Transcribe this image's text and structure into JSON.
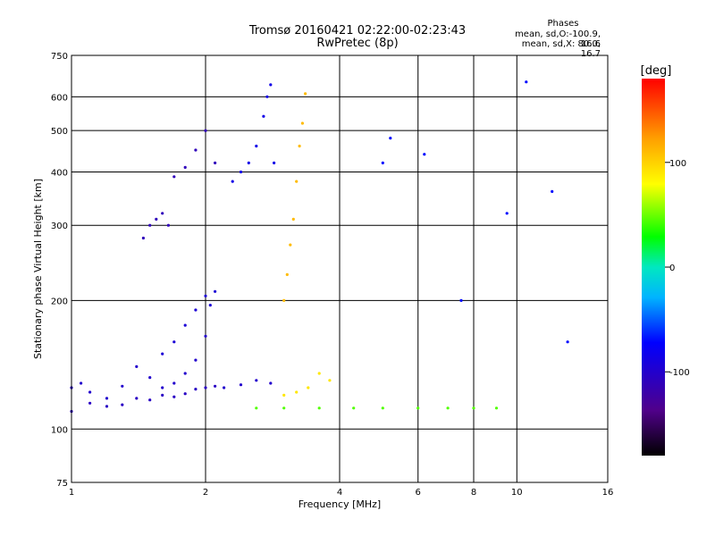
{
  "header": {
    "title": "Tromsø 20160421 02:22:00-02:23:43",
    "subtitle": "RwPretec (8p)"
  },
  "phases": {
    "heading": "Phases",
    "line_o": "mean, sd,O:-100.9, 16.6",
    "line_x": "mean, sd,X:  80.0, 16.7"
  },
  "chart_data": {
    "type": "scatter",
    "xlabel": "Frequency [MHz]",
    "ylabel": "Stationary phase Virtual Height [km]",
    "xscale": "log",
    "yscale": "log",
    "xlim": [
      1,
      16
    ],
    "ylim": [
      75,
      750
    ],
    "xticks": [
      1,
      2,
      4,
      6,
      8,
      10,
      16
    ],
    "yticks": [
      75,
      100,
      200,
      300,
      400,
      500,
      600,
      750
    ],
    "grid": true,
    "colorbar": {
      "label": "[deg]",
      "range": [
        -180,
        180
      ],
      "ticks": [
        100,
        0,
        -100
      ]
    },
    "series": [
      {
        "color_deg": -100,
        "x": [
          1.0,
          1.05,
          1.1,
          1.2,
          1.3,
          1.4,
          1.5,
          1.6,
          1.7,
          1.8,
          1.9,
          2.0,
          2.2,
          2.4,
          2.6,
          2.8
        ],
        "y": [
          125,
          128,
          122,
          118,
          126,
          140,
          132,
          125,
          128,
          135,
          145,
          165,
          125,
          127,
          130,
          128
        ]
      },
      {
        "color_deg": -105,
        "x": [
          1.0,
          1.1,
          1.2,
          1.3,
          1.4,
          1.5,
          1.6,
          1.7,
          1.8,
          1.9,
          2.0,
          2.1
        ],
        "y": [
          110,
          115,
          113,
          114,
          118,
          117,
          120,
          119,
          121,
          124,
          125,
          126
        ]
      },
      {
        "color_deg": -95,
        "x": [
          1.6,
          1.7,
          1.8,
          1.9,
          2.0,
          2.05,
          2.1
        ],
        "y": [
          150,
          160,
          175,
          190,
          205,
          195,
          210
        ]
      },
      {
        "color_deg": -110,
        "x": [
          1.45,
          1.5,
          1.55,
          1.6,
          1.65,
          1.7,
          1.8,
          1.9,
          2.0,
          2.1
        ],
        "y": [
          280,
          300,
          310,
          320,
          300,
          390,
          410,
          450,
          500,
          420
        ]
      },
      {
        "color_deg": -85,
        "x": [
          2.3,
          2.4,
          2.5,
          2.6,
          2.7,
          2.75,
          2.8,
          2.85
        ],
        "y": [
          380,
          400,
          420,
          460,
          540,
          600,
          640,
          420
        ]
      },
      {
        "color_deg": 110,
        "x": [
          3.0,
          3.05,
          3.1,
          3.15,
          3.2,
          3.25,
          3.3,
          3.35
        ],
        "y": [
          200,
          230,
          270,
          310,
          380,
          460,
          520,
          610
        ]
      },
      {
        "color_deg": 90,
        "x": [
          3.0,
          3.2,
          3.4,
          3.6,
          3.8
        ],
        "y": [
          120,
          122,
          125,
          135,
          130
        ]
      },
      {
        "color_deg": 45,
        "x": [
          2.6,
          3.0,
          3.6,
          4.3,
          5.0,
          6.0,
          7.0,
          8.0,
          9.0
        ],
        "y": [
          112,
          112,
          112,
          112,
          112,
          112,
          112,
          112,
          112
        ]
      },
      {
        "color_deg": -70,
        "x": [
          5.0,
          5.2,
          6.2,
          7.5,
          9.5,
          10.5,
          12.0,
          13.0
        ],
        "y": [
          420,
          480,
          440,
          200,
          320,
          650,
          360,
          160
        ]
      }
    ]
  }
}
